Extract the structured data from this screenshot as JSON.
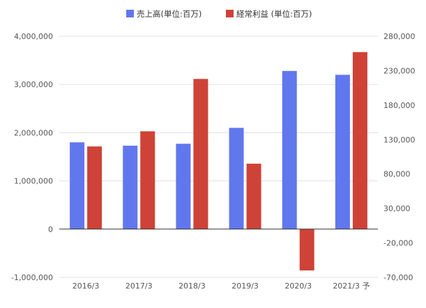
{
  "chart_data": {
    "type": "bar",
    "categories": [
      "2016/3",
      "2017/3",
      "2018/3",
      "2019/3",
      "2020/3",
      "2021/3 予"
    ],
    "series": [
      {
        "name": "売上高(単位:百万)",
        "axis": "left",
        "color": "#6177ee",
        "values": [
          1800000,
          1730000,
          1770000,
          2100000,
          3280000,
          3200000
        ]
      },
      {
        "name": "経常利益 (単位:百万)",
        "axis": "right",
        "color": "#cf4237",
        "values": [
          120000,
          142000,
          218000,
          95000,
          -60000,
          257000
        ]
      }
    ],
    "left_axis": {
      "min": -1000000,
      "max": 4000000,
      "ticks": [
        -1000000,
        0,
        1000000,
        2000000,
        3000000,
        4000000
      ],
      "tick_labels": [
        "-1,000,000",
        "0",
        "1,000,000",
        "2,000,000",
        "3,000,000",
        "4,000,000"
      ]
    },
    "right_axis": {
      "min": -70000,
      "max": 280000,
      "ticks": [
        -70000,
        -20000,
        30000,
        80000,
        130000,
        180000,
        230000,
        280000
      ],
      "tick_labels": [
        "-70,000",
        "-20,000",
        "30,000",
        "80,000",
        "130,000",
        "180,000",
        "230,000",
        "280,000"
      ]
    },
    "grid": true,
    "legend_position": "top-center"
  }
}
